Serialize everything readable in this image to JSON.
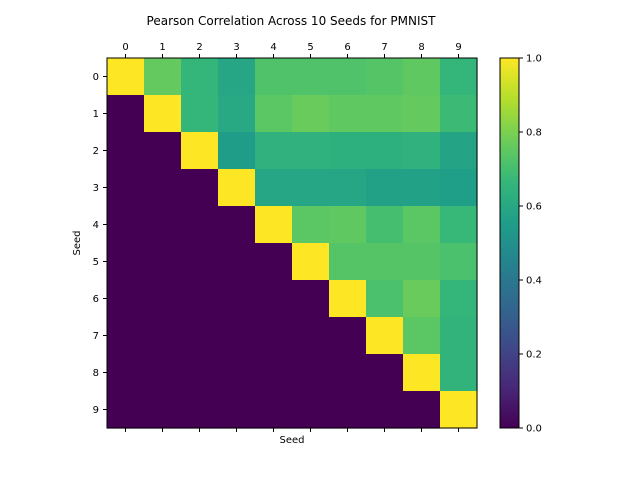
{
  "chart_data": {
    "type": "heatmap",
    "title": "Pearson Correlation Across 10 Seeds for PMNIST",
    "xlabel": "Seed",
    "ylabel": "Seed",
    "x_categories": [
      "0",
      "1",
      "2",
      "3",
      "4",
      "5",
      "6",
      "7",
      "8",
      "9"
    ],
    "y_categories": [
      "0",
      "1",
      "2",
      "3",
      "4",
      "5",
      "6",
      "7",
      "8",
      "9"
    ],
    "x_tick_position": "top",
    "colormap": "viridis",
    "vmin": 0.0,
    "vmax": 1.0,
    "colorbar_ticks": [
      "0.0",
      "0.2",
      "0.4",
      "0.6",
      "0.8",
      "1.0"
    ],
    "values": [
      [
        1.0,
        0.76,
        0.66,
        0.59,
        0.72,
        0.72,
        0.72,
        0.73,
        0.75,
        0.66
      ],
      [
        0.0,
        1.0,
        0.66,
        0.6,
        0.74,
        0.77,
        0.75,
        0.75,
        0.76,
        0.68
      ],
      [
        0.0,
        0.0,
        1.0,
        0.55,
        0.64,
        0.64,
        0.63,
        0.63,
        0.64,
        0.58
      ],
      [
        0.0,
        0.0,
        0.0,
        1.0,
        0.59,
        0.59,
        0.59,
        0.57,
        0.57,
        0.56
      ],
      [
        0.0,
        0.0,
        0.0,
        0.0,
        1.0,
        0.74,
        0.75,
        0.7,
        0.74,
        0.67
      ],
      [
        0.0,
        0.0,
        0.0,
        0.0,
        0.0,
        1.0,
        0.73,
        0.73,
        0.73,
        0.71
      ],
      [
        0.0,
        0.0,
        0.0,
        0.0,
        0.0,
        0.0,
        1.0,
        0.71,
        0.77,
        0.66
      ],
      [
        0.0,
        0.0,
        0.0,
        0.0,
        0.0,
        0.0,
        0.0,
        1.0,
        0.74,
        0.65
      ],
      [
        0.0,
        0.0,
        0.0,
        0.0,
        0.0,
        0.0,
        0.0,
        0.0,
        1.0,
        0.65
      ],
      [
        0.0,
        0.0,
        0.0,
        0.0,
        0.0,
        0.0,
        0.0,
        0.0,
        0.0,
        1.0
      ]
    ]
  }
}
